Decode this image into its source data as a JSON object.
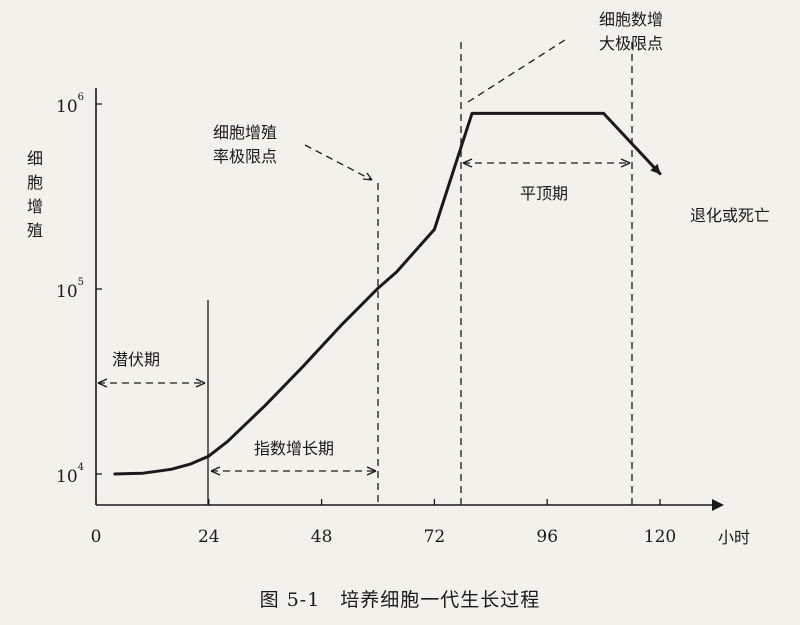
{
  "chart_data": {
    "type": "line",
    "caption": "图 5-1　培养细胞一代生长过程",
    "ylabel": "细胞增殖",
    "xlabel_unit": "小时",
    "x_ticks": [
      0,
      24,
      48,
      72,
      96,
      120
    ],
    "x_tick_labels": [
      "0",
      "24",
      "48",
      "72",
      "96",
      "120"
    ],
    "y_scale": "log",
    "y_ticks": [
      10000,
      100000,
      1000000
    ],
    "y_tick_labels": [
      {
        "base": "10",
        "exp": "4"
      },
      {
        "base": "10",
        "exp": "5"
      },
      {
        "base": "10",
        "exp": "6"
      }
    ],
    "xlim": [
      0,
      130
    ],
    "ylim": [
      10000,
      1000000
    ],
    "series": [
      {
        "x": [
          4,
          10,
          16,
          20,
          24,
          28,
          36,
          44,
          52,
          60,
          64,
          72,
          80,
          88,
          96,
          104,
          108,
          120
        ],
        "y": [
          10000,
          10100,
          10600,
          11300,
          12500,
          15000,
          23500,
          38000,
          63000,
          101000,
          124000,
          210000,
          890000,
          890000,
          890000,
          890000,
          890000,
          420000
        ]
      }
    ],
    "phases": [
      {
        "label": "潜伏期",
        "x_start": 0,
        "x_end": 24
      },
      {
        "label": "指数增长期",
        "x_start": 24,
        "x_end": 61
      },
      {
        "label": "平顶期",
        "x_start": 73,
        "x_end": 109
      }
    ],
    "annotations": [
      {
        "label": "细胞增殖率极限点",
        "x": 61,
        "line1": "细胞增殖",
        "line2": "率极限点"
      },
      {
        "label": "细胞数增大极限点",
        "x": 73,
        "line1": "细胞数增",
        "line2": "大极限点"
      },
      {
        "label": "退化或死亡",
        "x": 120
      }
    ]
  }
}
